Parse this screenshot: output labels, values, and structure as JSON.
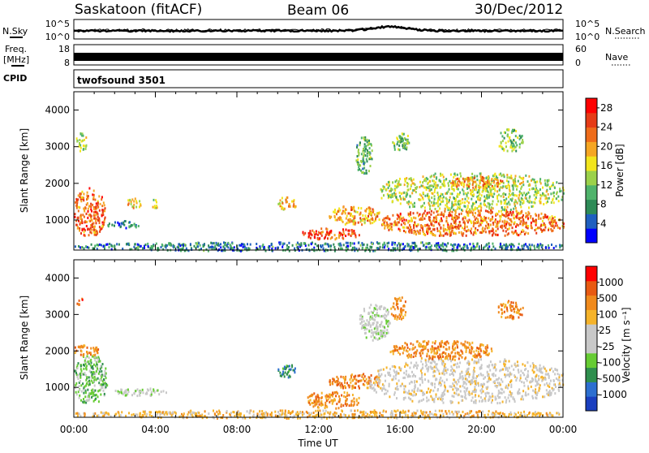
{
  "header": {
    "station": "Saskatoon (fitACF)",
    "beam": "Beam 06",
    "date": "30/Dec/2012"
  },
  "aux_panels": {
    "nsky_label": "N.Sky",
    "nsearch_label": "N.Search",
    "nsky_ticks": [
      "10^5",
      "10^0"
    ],
    "nsearch_ticks": [
      "10^5",
      "10^0"
    ],
    "freq_label_line1": "Freq.",
    "freq_label_line2": "[MHz]",
    "freq_ticks": [
      "18",
      "8"
    ],
    "nave_label": "Nave",
    "nave_ticks": [
      "60",
      "0"
    ],
    "cpid_label": "CPID",
    "cpid_value": "twofsound 3501"
  },
  "colors": {
    "power_scale": [
      "#0000ff",
      "#1f5fbf",
      "#2e8b57",
      "#4fb36b",
      "#9bd14a",
      "#f2e51d",
      "#f5a623",
      "#ef6c1a",
      "#e63b16",
      "#ff0000"
    ],
    "velocity_scale": [
      "#1a3fbf",
      "#2d6fd0",
      "#2f8f4e",
      "#66cc33",
      "#c8c8c8",
      "#c8c8c8",
      "#f5b32a",
      "#f08a1c",
      "#e85a12",
      "#ff0000"
    ]
  },
  "chart_data": [
    {
      "type": "heatmap",
      "name": "power-panel",
      "ylabel": "Slant Range [km]",
      "xlabel": "Time UT",
      "x_ticks": [
        "00:00",
        "04:00",
        "08:00",
        "12:00",
        "16:00",
        "20:00",
        "00:00"
      ],
      "xlim_hours": [
        0,
        24
      ],
      "y_ticks": [
        "1000",
        "2000",
        "3000",
        "4000"
      ],
      "ylim_km": [
        180,
        4500
      ],
      "colorbar_label": "Power [dB]",
      "colorbar_ticks": [
        "4",
        "8",
        "12",
        "16",
        "20",
        "24",
        "28"
      ],
      "crange": [
        0,
        30
      ],
      "blobs": [
        {
          "t0": 0.0,
          "t1": 1.5,
          "r0": 600,
          "r1": 1900,
          "v": 24
        },
        {
          "t0": 0.1,
          "t1": 0.6,
          "r0": 2900,
          "r1": 3400,
          "v": 14
        },
        {
          "t0": 1.6,
          "t1": 3.2,
          "r0": 800,
          "r1": 1000,
          "v": 6
        },
        {
          "t0": 2.6,
          "t1": 3.3,
          "r0": 1350,
          "r1": 1650,
          "v": 18
        },
        {
          "t0": 3.8,
          "t1": 4.1,
          "r0": 1350,
          "r1": 1600,
          "v": 16
        },
        {
          "t0": 10.0,
          "t1": 10.9,
          "r0": 1300,
          "r1": 1650,
          "v": 18
        },
        {
          "t0": 11.2,
          "t1": 14.0,
          "r0": 500,
          "r1": 800,
          "v": 26
        },
        {
          "t0": 12.5,
          "t1": 15.0,
          "r0": 900,
          "r1": 1400,
          "v": 20
        },
        {
          "t0": 15.0,
          "t1": 24.0,
          "r0": 600,
          "r1": 1300,
          "v": 23
        },
        {
          "t0": 15.0,
          "t1": 24.0,
          "r0": 1300,
          "r1": 2300,
          "v": 14
        },
        {
          "t0": 18.5,
          "t1": 21.0,
          "r0": 1900,
          "r1": 2200,
          "v": 22
        },
        {
          "t0": 15.5,
          "t1": 16.5,
          "r0": 2900,
          "r1": 3400,
          "v": 12
        },
        {
          "t0": 13.8,
          "t1": 14.6,
          "r0": 2300,
          "r1": 3300,
          "v": 10
        },
        {
          "t0": 20.8,
          "t1": 22.0,
          "r0": 2900,
          "r1": 3500,
          "v": 12
        },
        {
          "t0": 0.0,
          "t1": 24.0,
          "r0": 180,
          "r1": 420,
          "v": 6
        }
      ]
    },
    {
      "type": "heatmap",
      "name": "velocity-panel",
      "ylabel": "Slant Range [km]",
      "xlabel": "Time UT",
      "x_ticks": [
        "00:00",
        "04:00",
        "08:00",
        "12:00",
        "16:00",
        "20:00",
        "00:00"
      ],
      "xlim_hours": [
        0,
        24
      ],
      "y_ticks": [
        "1000",
        "2000",
        "3000",
        "4000"
      ],
      "ylim_km": [
        180,
        4500
      ],
      "colorbar_label": "Velocity [m s⁻¹]",
      "colorbar_ticks": [
        "-1000",
        "-500",
        "-100",
        "-25",
        "25",
        "100",
        "500",
        "1000"
      ],
      "blobs": [
        {
          "t0": 0.0,
          "t1": 1.6,
          "r0": 600,
          "r1": 1900,
          "v": 3
        },
        {
          "t0": 0.0,
          "t1": 1.2,
          "r0": 1900,
          "r1": 2200,
          "v": 7
        },
        {
          "t0": 0.1,
          "t1": 0.4,
          "r0": 3300,
          "r1": 3500,
          "v": 8
        },
        {
          "t0": 2.0,
          "t1": 4.5,
          "r0": 800,
          "r1": 1000,
          "v": 4
        },
        {
          "t0": 10.0,
          "t1": 10.9,
          "r0": 1300,
          "r1": 1650,
          "v": 2
        },
        {
          "t0": 11.3,
          "t1": 14.0,
          "r0": 450,
          "r1": 900,
          "v": 7
        },
        {
          "t0": 12.5,
          "t1": 15.0,
          "r0": 1000,
          "r1": 1400,
          "v": 7
        },
        {
          "t0": 14.5,
          "t1": 24.0,
          "r0": 600,
          "r1": 1800,
          "v": 5
        },
        {
          "t0": 15.5,
          "t1": 20.5,
          "r0": 1800,
          "r1": 2300,
          "v": 7
        },
        {
          "t0": 14.0,
          "t1": 15.5,
          "r0": 2300,
          "r1": 3300,
          "v": 4
        },
        {
          "t0": 15.5,
          "t1": 16.3,
          "r0": 2900,
          "r1": 3500,
          "v": 7
        },
        {
          "t0": 20.8,
          "t1": 22.0,
          "r0": 2900,
          "r1": 3400,
          "v": 7
        },
        {
          "t0": 0.0,
          "t1": 24.0,
          "r0": 180,
          "r1": 400,
          "v": 6
        }
      ]
    }
  ]
}
